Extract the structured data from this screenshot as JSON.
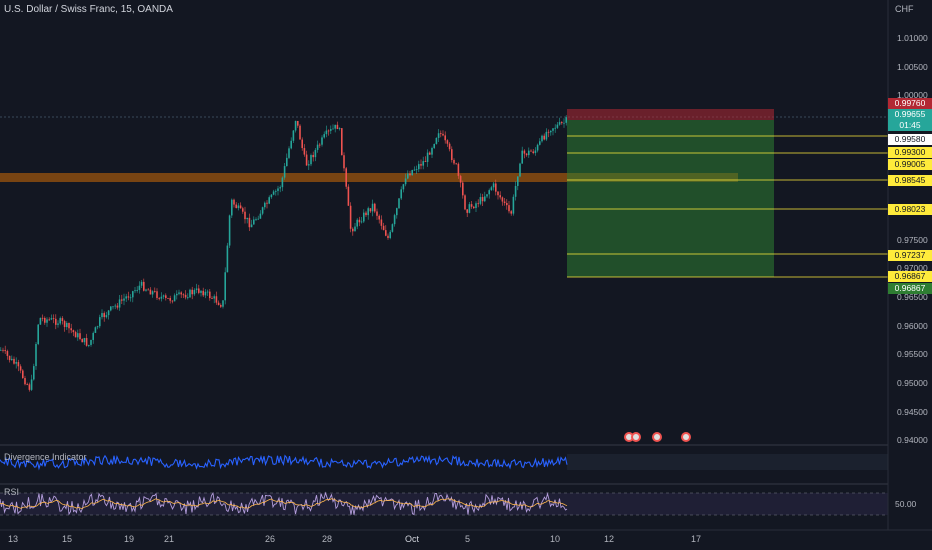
{
  "header": {
    "symbol_title": "U.S. Dollar / Swiss Franc, 15, OANDA",
    "currency": "CHF"
  },
  "indicators": {
    "divergence_label": "Divergence Indicator",
    "rsi_label": "RSI",
    "rsi_level": "50.00"
  },
  "price_axis": [
    "1.01000",
    "1.00500",
    "1.00000",
    "0.97500",
    "0.97000",
    "0.96500",
    "0.96000",
    "0.95500",
    "0.95000",
    "0.94500",
    "0.94000"
  ],
  "tags": [
    {
      "value": "0.99760",
      "bg": "#b22833",
      "fg": "#ffffff"
    },
    {
      "value": "0.99655",
      "bg": "#26a69a",
      "fg": "#ffffff"
    },
    {
      "value": "01:45",
      "bg": "#26a69a",
      "fg": "#ffffff"
    },
    {
      "value": "0.99580",
      "bg": "#ffffff",
      "fg": "#131722"
    },
    {
      "value": "0.99300",
      "bg": "#ffeb3b",
      "fg": "#131722"
    },
    {
      "value": "0.99005",
      "bg": "#ffeb3b",
      "fg": "#131722"
    },
    {
      "value": "0.98545",
      "bg": "#ffeb3b",
      "fg": "#131722"
    },
    {
      "value": "0.98023",
      "bg": "#ffeb3b",
      "fg": "#131722"
    },
    {
      "value": "0.97237",
      "bg": "#ffeb3b",
      "fg": "#131722"
    },
    {
      "value": "0.96867",
      "bg": "#ffeb3b",
      "fg": "#131722"
    },
    {
      "value": "0.96867",
      "bg": "#2e7d32",
      "fg": "#ffffff"
    }
  ],
  "date_axis": [
    "13",
    "15",
    "19",
    "21",
    "26",
    "28",
    "Oct",
    "5",
    "10",
    "12",
    "17"
  ],
  "colors": {
    "bg": "#131722",
    "up": "#26a69a",
    "down": "#ef5350",
    "zone": "#f57c00",
    "target": "#1b5e20",
    "stop": "#b22833",
    "divergence": "#2962ff",
    "rsi": "#7e57c2"
  }
}
